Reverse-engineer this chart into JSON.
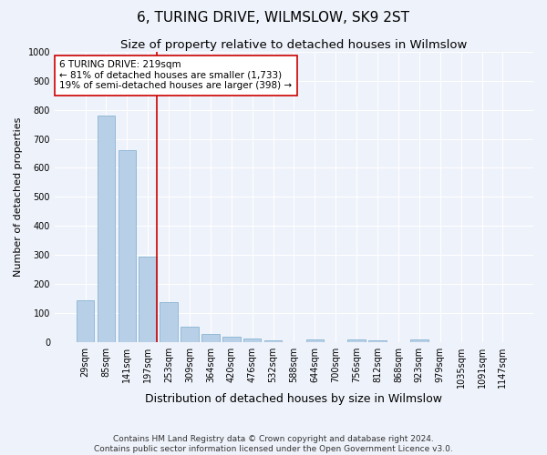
{
  "title": "6, TURING DRIVE, WILMSLOW, SK9 2ST",
  "subtitle": "Size of property relative to detached houses in Wilmslow",
  "xlabel": "Distribution of detached houses by size in Wilmslow",
  "ylabel": "Number of detached properties",
  "bar_labels": [
    "29sqm",
    "85sqm",
    "141sqm",
    "197sqm",
    "253sqm",
    "309sqm",
    "364sqm",
    "420sqm",
    "476sqm",
    "532sqm",
    "588sqm",
    "644sqm",
    "700sqm",
    "756sqm",
    "812sqm",
    "868sqm",
    "923sqm",
    "979sqm",
    "1035sqm",
    "1091sqm",
    "1147sqm"
  ],
  "bar_values": [
    145,
    780,
    660,
    295,
    137,
    55,
    28,
    18,
    13,
    8,
    0,
    10,
    0,
    10,
    8,
    0,
    10,
    0,
    0,
    0,
    0
  ],
  "bar_color": "#b8cfe8",
  "bar_edge_color": "#7aabcc",
  "ylim": [
    0,
    1000
  ],
  "yticks": [
    0,
    100,
    200,
    300,
    400,
    500,
    600,
    700,
    800,
    900,
    1000
  ],
  "red_line_color": "#cc0000",
  "red_line_x": 3.43,
  "annotation_text": "6 TURING DRIVE: 219sqm\n← 81% of detached houses are smaller (1,733)\n19% of semi-detached houses are larger (398) →",
  "annotation_box_color": "#ffffff",
  "annotation_box_edge": "#cc0000",
  "footnote1": "Contains HM Land Registry data © Crown copyright and database right 2024.",
  "footnote2": "Contains public sector information licensed under the Open Government Licence v3.0.",
  "background_color": "#eef2fa",
  "grid_color": "#ffffff",
  "title_fontsize": 11,
  "subtitle_fontsize": 9.5,
  "xlabel_fontsize": 9,
  "ylabel_fontsize": 8,
  "tick_fontsize": 7,
  "annotation_fontsize": 7.5,
  "footnote_fontsize": 6.5
}
